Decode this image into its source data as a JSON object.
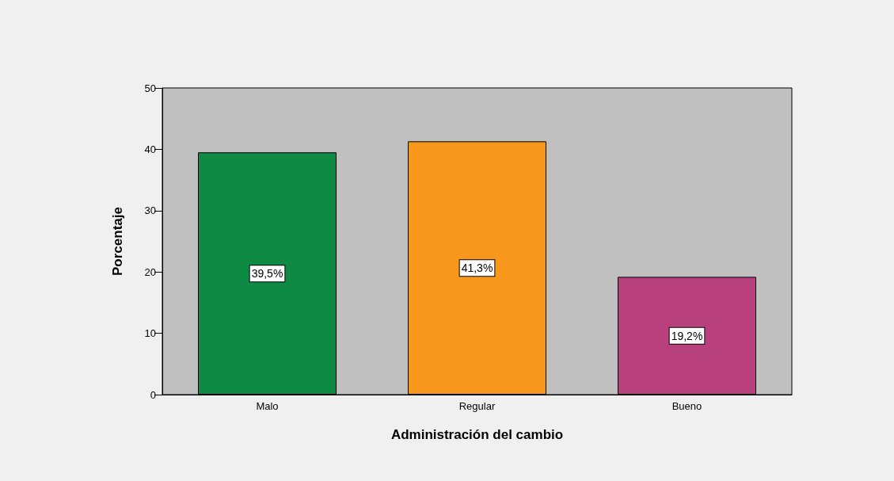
{
  "chart_data": {
    "type": "bar",
    "xlabel": "Administración del cambio",
    "ylabel": "Porcentaje",
    "categories": [
      "Malo",
      "Regular",
      "Bueno"
    ],
    "values": [
      39.5,
      41.3,
      19.2
    ],
    "colors": [
      "#0f8a45",
      "#f7981d",
      "#b8407d"
    ],
    "value_labels": [
      "39,5%",
      "41,3%",
      "19,2%"
    ],
    "ylim": [
      0,
      50
    ],
    "yticks": [
      0,
      10,
      20,
      30,
      40,
      50
    ],
    "grid": false
  }
}
